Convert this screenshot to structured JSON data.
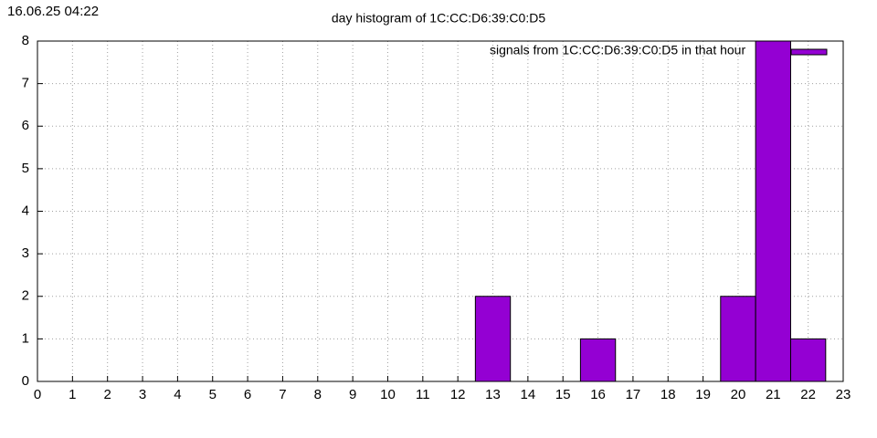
{
  "chart_data": {
    "type": "bar",
    "timestamp": "16.06.25 04:22",
    "title": "day histogram of 1C:CC:D6:39:C0:D5",
    "series": [
      {
        "name": "signals from 1C:CC:D6:39:C0:D5 in that hour",
        "color": "#9400d3",
        "x": [
          13,
          16,
          20,
          21,
          22
        ],
        "values": [
          2,
          1,
          2,
          8,
          1
        ]
      }
    ],
    "bar_width": 1,
    "xlim": [
      0,
      23
    ],
    "xticks": [
      0,
      1,
      2,
      3,
      4,
      5,
      6,
      7,
      8,
      9,
      10,
      11,
      12,
      13,
      14,
      15,
      16,
      17,
      18,
      19,
      20,
      21,
      22,
      23
    ],
    "ylim": [
      0,
      8
    ],
    "yticks": [
      0,
      1,
      2,
      3,
      4,
      5,
      6,
      7,
      8
    ],
    "grid": true,
    "legend": "top-right"
  }
}
